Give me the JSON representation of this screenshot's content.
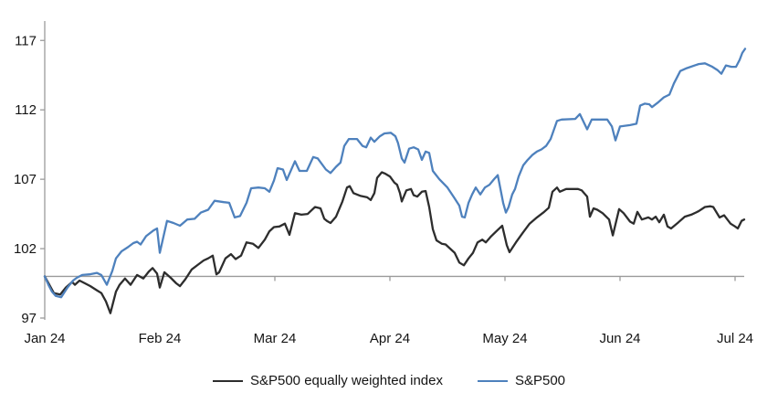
{
  "chart_data": {
    "type": "line",
    "title": "",
    "xlabel": "",
    "ylabel": "",
    "grid": "off",
    "legend_position": "bottom-center",
    "x_axis": {
      "tick_labels": [
        "Jan 24",
        "Feb 24",
        "Mar 24",
        "Apr 24",
        "May 24",
        "Jun 24",
        "Jul 24"
      ],
      "unit": "month-index-2024",
      "baseline_value": 100,
      "axis_drawn_at_value": 100
    },
    "y_axis": {
      "tick_labels": [
        "97",
        "102",
        "107",
        "112",
        "117"
      ],
      "ticks": [
        97,
        102,
        107,
        112,
        117
      ],
      "ylim": [
        97,
        118.4
      ],
      "indexed_to": "100 = start of period"
    },
    "axis_color": "#9b9b9b",
    "series": [
      {
        "name": "S&P500 equally weighted index",
        "color": "#2d2d2d",
        "points": [
          [
            0,
            100
          ],
          [
            0.04,
            99.4
          ],
          [
            0.079,
            98.8
          ],
          [
            0.135,
            98.7
          ],
          [
            0.183,
            99.2
          ],
          [
            0.238,
            99.6
          ],
          [
            0.262,
            99.4
          ],
          [
            0.302,
            99.7
          ],
          [
            0.349,
            99.5
          ],
          [
            0.397,
            99.3
          ],
          [
            0.452,
            99.0
          ],
          [
            0.492,
            98.8
          ],
          [
            0.532,
            98.2
          ],
          [
            0.571,
            97.35
          ],
          [
            0.619,
            98.9
          ],
          [
            0.651,
            99.4
          ],
          [
            0.698,
            99.85
          ],
          [
            0.746,
            99.4
          ],
          [
            0.802,
            100.1
          ],
          [
            0.857,
            99.85
          ],
          [
            0.905,
            100.35
          ],
          [
            0.937,
            100.6
          ],
          [
            0.976,
            100.2
          ],
          [
            1.0,
            99.2
          ],
          [
            1.04,
            100.3
          ],
          [
            1.095,
            99.9
          ],
          [
            1.143,
            99.5
          ],
          [
            1.175,
            99.3
          ],
          [
            1.222,
            99.8
          ],
          [
            1.278,
            100.5
          ],
          [
            1.333,
            100.85
          ],
          [
            1.381,
            101.15
          ],
          [
            1.421,
            101.3
          ],
          [
            1.46,
            101.5
          ],
          [
            1.492,
            100.15
          ],
          [
            1.516,
            100.3
          ],
          [
            1.571,
            101.3
          ],
          [
            1.619,
            101.6
          ],
          [
            1.659,
            101.25
          ],
          [
            1.706,
            101.5
          ],
          [
            1.754,
            102.45
          ],
          [
            1.81,
            102.35
          ],
          [
            1.857,
            102.05
          ],
          [
            1.913,
            102.65
          ],
          [
            1.952,
            103.25
          ],
          [
            1.992,
            103.55
          ],
          [
            2.04,
            103.6
          ],
          [
            2.087,
            103.8
          ],
          [
            2.127,
            103.0
          ],
          [
            2.175,
            104.55
          ],
          [
            2.23,
            104.45
          ],
          [
            2.286,
            104.5
          ],
          [
            2.317,
            104.75
          ],
          [
            2.349,
            105.0
          ],
          [
            2.397,
            104.9
          ],
          [
            2.429,
            104.15
          ],
          [
            2.452,
            104.0
          ],
          [
            2.484,
            103.85
          ],
          [
            2.532,
            104.3
          ],
          [
            2.587,
            105.4
          ],
          [
            2.627,
            106.4
          ],
          [
            2.651,
            106.5
          ],
          [
            2.683,
            106.0
          ],
          [
            2.746,
            105.8
          ],
          [
            2.802,
            105.7
          ],
          [
            2.833,
            105.5
          ],
          [
            2.865,
            106.0
          ],
          [
            2.889,
            107.1
          ],
          [
            2.929,
            107.5
          ],
          [
            2.96,
            107.4
          ],
          [
            3.0,
            107.2
          ],
          [
            3.04,
            106.75
          ],
          [
            3.063,
            106.6
          ],
          [
            3.087,
            106.0
          ],
          [
            3.103,
            105.4
          ],
          [
            3.143,
            106.2
          ],
          [
            3.183,
            106.3
          ],
          [
            3.206,
            105.85
          ],
          [
            3.238,
            105.75
          ],
          [
            3.278,
            106.1
          ],
          [
            3.31,
            106.15
          ],
          [
            3.341,
            105.0
          ],
          [
            3.373,
            103.4
          ],
          [
            3.405,
            102.6
          ],
          [
            3.452,
            102.35
          ],
          [
            3.484,
            102.3
          ],
          [
            3.524,
            102.0
          ],
          [
            3.563,
            101.7
          ],
          [
            3.603,
            101.0
          ],
          [
            3.643,
            100.8
          ],
          [
            3.683,
            101.3
          ],
          [
            3.722,
            101.7
          ],
          [
            3.762,
            102.45
          ],
          [
            3.802,
            102.65
          ],
          [
            3.833,
            102.45
          ],
          [
            3.881,
            102.9
          ],
          [
            3.937,
            103.35
          ],
          [
            3.976,
            103.65
          ],
          [
            4.016,
            102.25
          ],
          [
            4.04,
            101.75
          ],
          [
            4.095,
            102.45
          ],
          [
            4.151,
            103.1
          ],
          [
            4.214,
            103.8
          ],
          [
            4.278,
            104.25
          ],
          [
            4.333,
            104.6
          ],
          [
            4.381,
            104.95
          ],
          [
            4.413,
            106.1
          ],
          [
            4.452,
            106.4
          ],
          [
            4.476,
            106.1
          ],
          [
            4.532,
            106.3
          ],
          [
            4.635,
            106.3
          ],
          [
            4.667,
            106.2
          ],
          [
            4.714,
            105.75
          ],
          [
            4.738,
            104.3
          ],
          [
            4.77,
            104.9
          ],
          [
            4.802,
            104.8
          ],
          [
            4.849,
            104.55
          ],
          [
            4.905,
            104.1
          ],
          [
            4.937,
            102.95
          ],
          [
            4.992,
            104.85
          ],
          [
            5.032,
            104.55
          ],
          [
            5.087,
            103.95
          ],
          [
            5.119,
            103.8
          ],
          [
            5.151,
            104.65
          ],
          [
            5.19,
            104.1
          ],
          [
            5.246,
            104.25
          ],
          [
            5.278,
            104.1
          ],
          [
            5.31,
            104.3
          ],
          [
            5.341,
            103.9
          ],
          [
            5.381,
            104.45
          ],
          [
            5.413,
            103.6
          ],
          [
            5.444,
            103.45
          ],
          [
            5.508,
            103.9
          ],
          [
            5.563,
            104.3
          ],
          [
            5.619,
            104.45
          ],
          [
            5.683,
            104.7
          ],
          [
            5.738,
            105.0
          ],
          [
            5.786,
            105.05
          ],
          [
            5.81,
            105.0
          ],
          [
            5.865,
            104.25
          ],
          [
            5.905,
            104.4
          ],
          [
            5.96,
            103.8
          ],
          [
            6.0,
            103.6
          ],
          [
            6.024,
            103.45
          ],
          [
            6.056,
            104.0
          ],
          [
            6.079,
            104.1
          ]
        ]
      },
      {
        "name": "S&P500",
        "color": "#4e81bd",
        "points": [
          [
            0,
            100
          ],
          [
            0.032,
            99.4
          ],
          [
            0.063,
            98.9
          ],
          [
            0.095,
            98.6
          ],
          [
            0.143,
            98.5
          ],
          [
            0.198,
            99.2
          ],
          [
            0.246,
            99.7
          ],
          [
            0.278,
            99.9
          ],
          [
            0.325,
            100.1
          ],
          [
            0.389,
            100.15
          ],
          [
            0.452,
            100.25
          ],
          [
            0.492,
            100.1
          ],
          [
            0.54,
            99.4
          ],
          [
            0.587,
            100.4
          ],
          [
            0.619,
            101.3
          ],
          [
            0.667,
            101.8
          ],
          [
            0.722,
            102.1
          ],
          [
            0.77,
            102.4
          ],
          [
            0.802,
            102.5
          ],
          [
            0.833,
            102.3
          ],
          [
            0.881,
            102.9
          ],
          [
            0.944,
            103.3
          ],
          [
            0.976,
            103.45
          ],
          [
            1.0,
            101.7
          ],
          [
            1.063,
            104.0
          ],
          [
            1.119,
            103.85
          ],
          [
            1.175,
            103.65
          ],
          [
            1.238,
            104.1
          ],
          [
            1.302,
            104.15
          ],
          [
            1.357,
            104.6
          ],
          [
            1.421,
            104.8
          ],
          [
            1.476,
            105.45
          ],
          [
            1.556,
            105.35
          ],
          [
            1.603,
            105.3
          ],
          [
            1.651,
            104.25
          ],
          [
            1.698,
            104.35
          ],
          [
            1.754,
            105.3
          ],
          [
            1.794,
            106.35
          ],
          [
            1.857,
            106.4
          ],
          [
            1.913,
            106.35
          ],
          [
            1.952,
            106.1
          ],
          [
            1.992,
            106.9
          ],
          [
            2.024,
            107.8
          ],
          [
            2.071,
            107.7
          ],
          [
            2.103,
            106.95
          ],
          [
            2.175,
            108.3
          ],
          [
            2.214,
            107.6
          ],
          [
            2.278,
            107.6
          ],
          [
            2.333,
            108.6
          ],
          [
            2.373,
            108.5
          ],
          [
            2.444,
            107.7
          ],
          [
            2.484,
            107.45
          ],
          [
            2.532,
            107.9
          ],
          [
            2.571,
            108.2
          ],
          [
            2.603,
            109.4
          ],
          [
            2.643,
            109.9
          ],
          [
            2.714,
            109.9
          ],
          [
            2.762,
            109.4
          ],
          [
            2.794,
            109.3
          ],
          [
            2.833,
            110.0
          ],
          [
            2.865,
            109.7
          ],
          [
            2.913,
            110.1
          ],
          [
            2.952,
            110.3
          ],
          [
            3.008,
            110.35
          ],
          [
            3.048,
            110.1
          ],
          [
            3.071,
            109.6
          ],
          [
            3.103,
            108.5
          ],
          [
            3.127,
            108.2
          ],
          [
            3.167,
            109.2
          ],
          [
            3.206,
            109.3
          ],
          [
            3.246,
            109.15
          ],
          [
            3.278,
            108.4
          ],
          [
            3.31,
            109.0
          ],
          [
            3.341,
            108.9
          ],
          [
            3.373,
            107.6
          ],
          [
            3.429,
            107.0
          ],
          [
            3.5,
            106.4
          ],
          [
            3.556,
            105.7
          ],
          [
            3.603,
            105.1
          ],
          [
            3.627,
            104.3
          ],
          [
            3.651,
            104.25
          ],
          [
            3.683,
            105.3
          ],
          [
            3.714,
            105.9
          ],
          [
            3.746,
            106.4
          ],
          [
            3.786,
            105.9
          ],
          [
            3.825,
            106.4
          ],
          [
            3.865,
            106.6
          ],
          [
            3.905,
            107.0
          ],
          [
            3.937,
            107.3
          ],
          [
            3.984,
            105.3
          ],
          [
            4.008,
            104.6
          ],
          [
            4.032,
            105.0
          ],
          [
            4.063,
            105.9
          ],
          [
            4.087,
            106.3
          ],
          [
            4.119,
            107.2
          ],
          [
            4.159,
            108.0
          ],
          [
            4.198,
            108.4
          ],
          [
            4.238,
            108.75
          ],
          [
            4.278,
            109.0
          ],
          [
            4.317,
            109.15
          ],
          [
            4.357,
            109.4
          ],
          [
            4.397,
            109.9
          ],
          [
            4.452,
            111.2
          ],
          [
            4.492,
            111.3
          ],
          [
            4.611,
            111.35
          ],
          [
            4.651,
            111.7
          ],
          [
            4.714,
            110.6
          ],
          [
            4.754,
            111.3
          ],
          [
            4.889,
            111.3
          ],
          [
            4.929,
            110.8
          ],
          [
            4.96,
            109.8
          ],
          [
            5.0,
            110.8
          ],
          [
            5.087,
            110.9
          ],
          [
            5.143,
            111.0
          ],
          [
            5.175,
            112.3
          ],
          [
            5.214,
            112.45
          ],
          [
            5.254,
            112.4
          ],
          [
            5.278,
            112.2
          ],
          [
            5.325,
            112.5
          ],
          [
            5.381,
            112.9
          ],
          [
            5.429,
            113.1
          ],
          [
            5.468,
            113.9
          ],
          [
            5.524,
            114.8
          ],
          [
            5.579,
            115.0
          ],
          [
            5.683,
            115.3
          ],
          [
            5.738,
            115.35
          ],
          [
            5.802,
            115.1
          ],
          [
            5.849,
            114.85
          ],
          [
            5.881,
            114.6
          ],
          [
            5.921,
            115.2
          ],
          [
            5.968,
            115.1
          ],
          [
            6.008,
            115.1
          ],
          [
            6.04,
            115.6
          ],
          [
            6.063,
            116.1
          ],
          [
            6.087,
            116.4
          ]
        ]
      }
    ]
  },
  "legend": {
    "items": [
      {
        "label": "S&P500 equally weighted index",
        "color": "#2d2d2d"
      },
      {
        "label": "S&P500",
        "color": "#4e81bd"
      }
    ]
  }
}
